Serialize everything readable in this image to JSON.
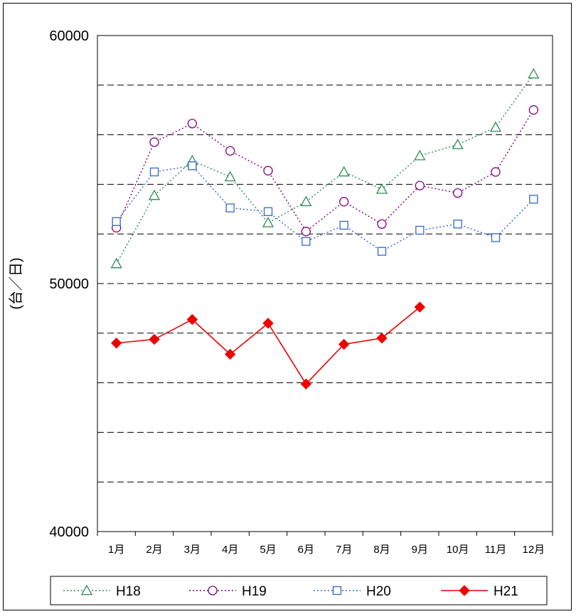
{
  "chart_data": {
    "type": "line",
    "title": "",
    "xlabel": "",
    "ylabel": "(台／日)",
    "ylim": [
      40000,
      60000
    ],
    "y_ticks_labeled": [
      "40000",
      "50000",
      "60000"
    ],
    "gridlines_y": [
      42000,
      44000,
      46000,
      48000,
      50000,
      52000,
      54000,
      56000,
      58000
    ],
    "grid": "horizontal dashed",
    "legend": "bottom",
    "categories": [
      "1月",
      "2月",
      "3月",
      "4月",
      "5月",
      "6月",
      "7月",
      "8月",
      "9月",
      "10月",
      "11月",
      "12月"
    ],
    "series": [
      {
        "name": "H18",
        "color": "#2e8b57",
        "marker": "triangle-open",
        "line": "dotted",
        "values": [
          50800,
          53550,
          54950,
          54300,
          52450,
          53300,
          54500,
          53800,
          55150,
          55600,
          56300,
          58450
        ]
      },
      {
        "name": "H19",
        "color": "#800080",
        "marker": "circle-open",
        "line": "dotted",
        "values": [
          52250,
          55700,
          56450,
          55350,
          54550,
          52100,
          53300,
          52400,
          53950,
          53650,
          54500,
          57000
        ]
      },
      {
        "name": "H20",
        "color": "#3366cc",
        "marker": "square-open",
        "line": "dotted",
        "values": [
          52500,
          54500,
          54750,
          53050,
          52900,
          51700,
          52350,
          51300,
          52150,
          52400,
          51850,
          53400
        ]
      },
      {
        "name": "H21",
        "color": "#ee0000",
        "marker": "diamond-filled",
        "line": "solid",
        "values": [
          47600,
          47750,
          48550,
          47150,
          48400,
          45950,
          47550,
          47800,
          49050,
          null,
          null,
          null
        ]
      }
    ]
  }
}
